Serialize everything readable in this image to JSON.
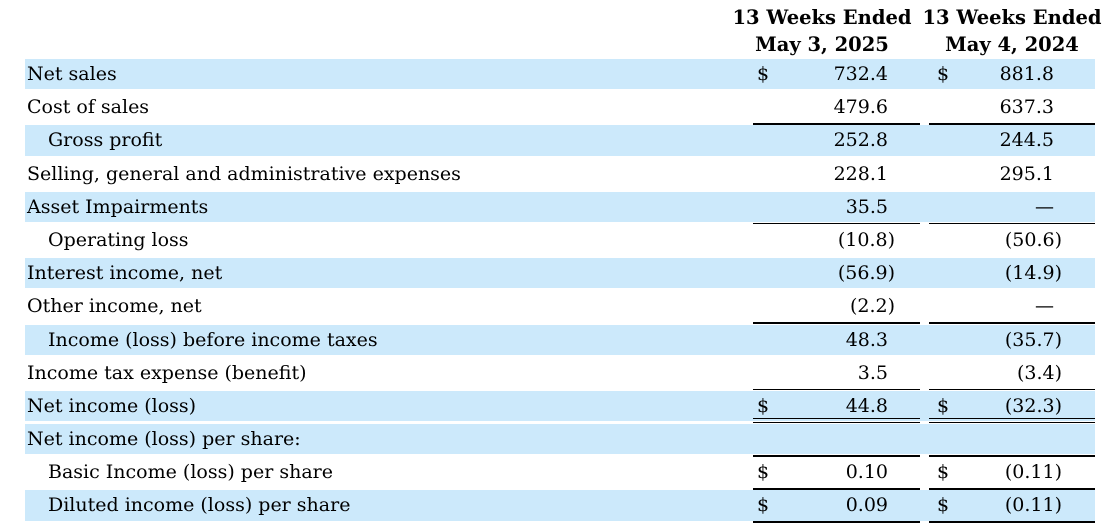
{
  "colors": {
    "row_highlight": "#cce9fb",
    "text": "#000000",
    "rule": "#000000"
  },
  "table": {
    "dollar_sign": "$",
    "columns": [
      {
        "line1": "13 Weeks Ended",
        "line2": "May 3, 2025"
      },
      {
        "line1": "13 Weeks Ended",
        "line2": "May 4, 2024"
      }
    ],
    "rows": [
      {
        "label": "Net sales",
        "indent": 0,
        "shaded": true,
        "dollar": true,
        "v1": "732.4",
        "v2": "881.8",
        "rule": "none"
      },
      {
        "label": "Cost of sales",
        "indent": 0,
        "shaded": false,
        "dollar": false,
        "v1": "479.6",
        "v2": "637.3",
        "rule": "single"
      },
      {
        "label": "Gross profit",
        "indent": 1,
        "shaded": true,
        "dollar": false,
        "v1": "252.8",
        "v2": "244.5",
        "rule": "none"
      },
      {
        "label": "Selling, general and administrative expenses",
        "indent": 0,
        "shaded": false,
        "dollar": false,
        "v1": "228.1",
        "v2": "295.1",
        "rule": "none"
      },
      {
        "label": "Asset Impairments",
        "indent": 0,
        "shaded": true,
        "dollar": false,
        "v1": "35.5",
        "v2": "—",
        "rule": "single"
      },
      {
        "label": "Operating loss",
        "indent": 1,
        "shaded": false,
        "dollar": false,
        "v1": "(10.8)",
        "v2": "(50.6)",
        "rule": "none"
      },
      {
        "label": "Interest income, net",
        "indent": 0,
        "shaded": true,
        "dollar": false,
        "v1": "(56.9)",
        "v2": "(14.9)",
        "rule": "none"
      },
      {
        "label": "Other income, net",
        "indent": 0,
        "shaded": false,
        "dollar": false,
        "v1": "(2.2)",
        "v2": "—",
        "rule": "single"
      },
      {
        "label": "Income (loss) before income taxes",
        "indent": 1,
        "shaded": true,
        "dollar": false,
        "v1": "48.3",
        "v2": "(35.7)",
        "rule": "none"
      },
      {
        "label": "Income tax expense (benefit)",
        "indent": 0,
        "shaded": false,
        "dollar": false,
        "v1": "3.5",
        "v2": "(3.4)",
        "rule": "single"
      },
      {
        "label": "Net income (loss)",
        "indent": 0,
        "shaded": true,
        "dollar": true,
        "v1": "44.8",
        "v2": "(32.3)",
        "rule": "double"
      },
      {
        "label": "Net income (loss) per share:",
        "indent": 0,
        "shaded": true,
        "dollar": false,
        "v1": "",
        "v2": "",
        "rule": "single"
      },
      {
        "label": "Basic Income (loss) per share",
        "indent": 1,
        "shaded": false,
        "dollar": true,
        "v1": "0.10",
        "v2": "(0.11)",
        "rule": "single"
      },
      {
        "label": "Diluted income (loss) per share",
        "indent": 1,
        "shaded": true,
        "dollar": true,
        "v1": "0.09",
        "v2": "(0.11)",
        "rule": "single"
      }
    ]
  }
}
